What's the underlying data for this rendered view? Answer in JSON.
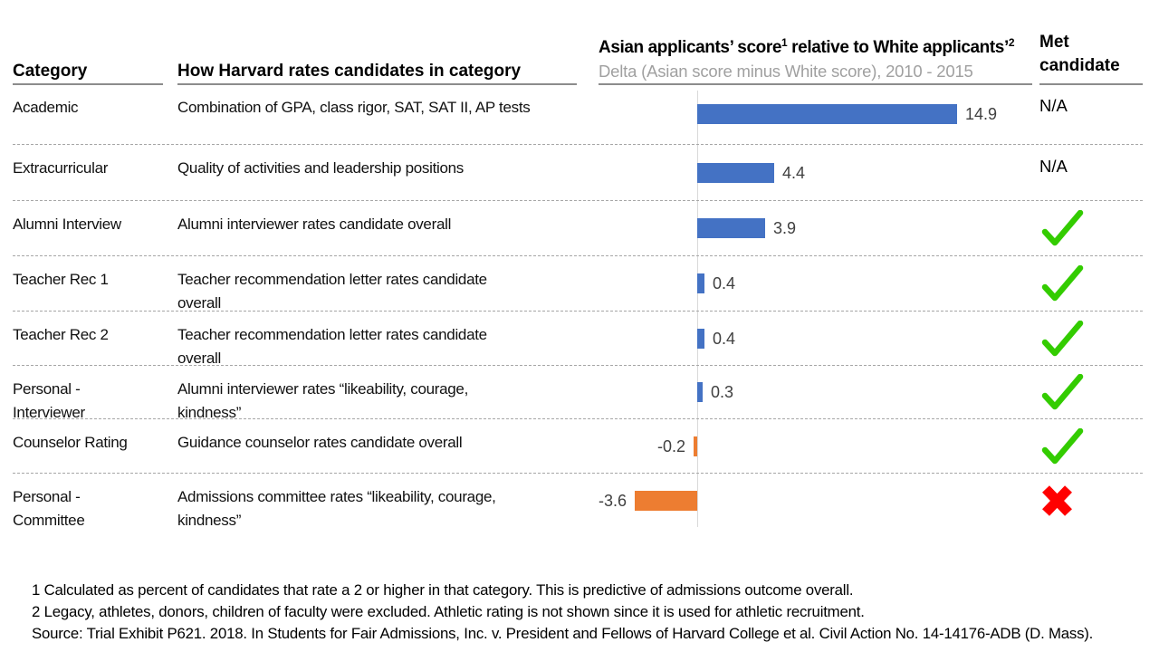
{
  "header": {
    "category": "Category",
    "description": "How Harvard rates candidates in category",
    "delta_title_parts": [
      "Asian applicants’ score",
      "1",
      " relative to White applicants’",
      "2"
    ],
    "delta_subtitle": "Delta (Asian score minus White score), 2010 - 2015",
    "met_line1": "Met",
    "met_line2": "candidate"
  },
  "rows": [
    {
      "category": "Academic",
      "description": "Combination of GPA, class rigor, SAT, SAT II, AP tests",
      "delta": 14.9,
      "delta_label": "14.9",
      "met_status": "na",
      "met_label": "N/A"
    },
    {
      "category": "Extracurricular",
      "description": "Quality of activities and leadership positions",
      "delta": 4.4,
      "delta_label": "4.4",
      "met_status": "na",
      "met_label": "N/A"
    },
    {
      "category": "Alumni Interview",
      "description": "Alumni interviewer rates candidate overall",
      "delta": 3.9,
      "delta_label": "3.9",
      "met_status": "met"
    },
    {
      "category": "Teacher Rec 1",
      "description": "Teacher recommendation letter rates candidate\noverall",
      "delta": 0.4,
      "delta_label": "0.4",
      "met_status": "met"
    },
    {
      "category": "Teacher Rec 2",
      "description": "Teacher recommendation letter rates candidate\noverall",
      "delta": 0.4,
      "delta_label": "0.4",
      "met_status": "met"
    },
    {
      "category": "Personal -\nInterviewer",
      "description": "Alumni interviewer rates “likeability, courage,\nkindness”",
      "delta": 0.3,
      "delta_label": "0.3",
      "met_status": "met"
    },
    {
      "category": "Counselor Rating",
      "description": "Guidance counselor rates candidate overall",
      "delta": -0.2,
      "delta_label": "-0.2",
      "met_status": "met"
    },
    {
      "category": "Personal -\nCommittee",
      "description": "Admissions committee rates “likeability, courage,\nkindness”",
      "delta": -3.6,
      "delta_label": "-3.6",
      "met_status": "not_met"
    }
  ],
  "footnotes": [
    "1 Calculated as percent of candidates that rate a 2 or higher in that category. This is predictive of admissions outcome overall.",
    "2 Legacy, athletes, donors, children of faculty were excluded. Athletic rating is not shown since it is used for athletic recruitment.",
    "Source: Trial Exhibit P621. 2018. In Students for Fair Admissions, Inc. v. President and Fellows of Harvard College et al. Civil Action No. 14-14176-ADB (D. Mass)."
  ],
  "colors": {
    "positive_bar": "#4472C4",
    "negative_bar": "#ED7D31",
    "check": "#33CC00",
    "cross": "#FF0000",
    "axis_line": "#D9D9D9",
    "dashed_separator": "#A6A6A6",
    "header_underline": "#8C8C8C",
    "subtitle_gray": "#A0A0A0",
    "value_label": "#404040"
  },
  "chart_data": {
    "type": "bar",
    "orientation": "horizontal",
    "title": "Asian applicants’ score¹ relative to White applicants’²",
    "subtitle": "Delta (Asian score minus White score), 2010 - 2015",
    "categories": [
      "Academic",
      "Extracurricular",
      "Alumni Interview",
      "Teacher Rec 1",
      "Teacher Rec 2",
      "Personal - Interviewer",
      "Counselor Rating",
      "Personal - Committee"
    ],
    "values": [
      14.9,
      4.4,
      3.9,
      0.4,
      0.4,
      0.3,
      -0.2,
      -3.6
    ],
    "data_labels": [
      "14.9",
      "4.4",
      "3.9",
      "0.4",
      "0.4",
      "0.3",
      "-0.2",
      "-3.6"
    ],
    "met_candidate": [
      "N/A",
      "N/A",
      "yes",
      "yes",
      "yes",
      "yes",
      "yes",
      "no"
    ],
    "positive_color": "#4472C4",
    "negative_color": "#ED7D31",
    "xlim": [
      -5.7,
      19.2
    ],
    "grid": "dashed row separators, single zero axis line, no tick labels"
  }
}
